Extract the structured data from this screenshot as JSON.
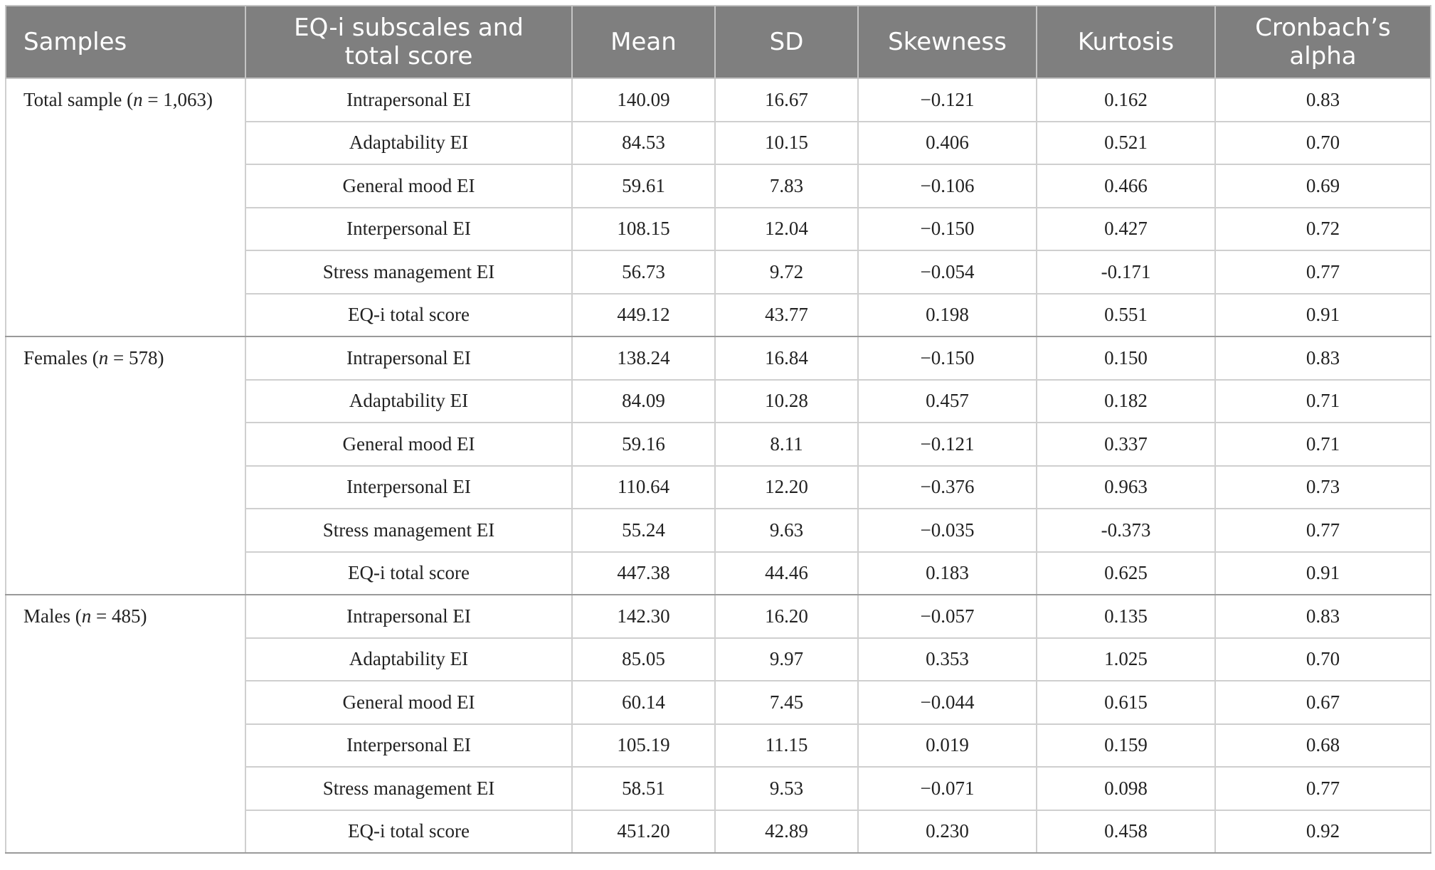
{
  "header": {
    "samples": "Samples",
    "subscales_line1": "EQ-i subscales and",
    "subscales_line2": "total score",
    "mean": "Mean",
    "sd": "SD",
    "skewness": "Skewness",
    "kurtosis": "Kurtosis",
    "alpha_line1": "Cronbach’s",
    "alpha_line2": "alpha"
  },
  "groups": [
    {
      "label": "Total sample",
      "n_symbol": "n",
      "n_text": " = 1,063)",
      "rows": [
        {
          "subscale": "Intrapersonal EI",
          "mean": "140.09",
          "sd": "16.67",
          "skewness": "−0.121",
          "kurtosis": "0.162",
          "alpha": "0.83"
        },
        {
          "subscale": "Adaptability EI",
          "mean": "84.53",
          "sd": "10.15",
          "skewness": "0.406",
          "kurtosis": "0.521",
          "alpha": "0.70"
        },
        {
          "subscale": "General mood EI",
          "mean": "59.61",
          "sd": "7.83",
          "skewness": "−0.106",
          "kurtosis": "0.466",
          "alpha": "0.69"
        },
        {
          "subscale": "Interpersonal EI",
          "mean": "108.15",
          "sd": "12.04",
          "skewness": "−0.150",
          "kurtosis": "0.427",
          "alpha": "0.72"
        },
        {
          "subscale": "Stress management EI",
          "mean": "56.73",
          "sd": "9.72",
          "skewness": "−0.054",
          "kurtosis": "-0.171",
          "alpha": "0.77"
        },
        {
          "subscale": "EQ-i total score",
          "mean": "449.12",
          "sd": "43.77",
          "skewness": "0.198",
          "kurtosis": "0.551",
          "alpha": "0.91"
        }
      ]
    },
    {
      "label": "Females",
      "n_symbol": "n",
      "n_text": " = 578)",
      "rows": [
        {
          "subscale": "Intrapersonal EI",
          "mean": "138.24",
          "sd": "16.84",
          "skewness": "−0.150",
          "kurtosis": "0.150",
          "alpha": "0.83"
        },
        {
          "subscale": "Adaptability EI",
          "mean": "84.09",
          "sd": "10.28",
          "skewness": "0.457",
          "kurtosis": "0.182",
          "alpha": "0.71"
        },
        {
          "subscale": "General mood EI",
          "mean": "59.16",
          "sd": "8.11",
          "skewness": "−0.121",
          "kurtosis": "0.337",
          "alpha": "0.71"
        },
        {
          "subscale": "Interpersonal EI",
          "mean": "110.64",
          "sd": "12.20",
          "skewness": "−0.376",
          "kurtosis": "0.963",
          "alpha": "0.73"
        },
        {
          "subscale": "Stress management EI",
          "mean": "55.24",
          "sd": "9.63",
          "skewness": "−0.035",
          "kurtosis": "-0.373",
          "alpha": "0.77"
        },
        {
          "subscale": "EQ-i total score",
          "mean": "447.38",
          "sd": "44.46",
          "skewness": "0.183",
          "kurtosis": "0.625",
          "alpha": "0.91"
        }
      ]
    },
    {
      "label": "Males",
      "n_symbol": "n",
      "n_text": " = 485)",
      "rows": [
        {
          "subscale": "Intrapersonal EI",
          "mean": "142.30",
          "sd": "16.20",
          "skewness": "−0.057",
          "kurtosis": "0.135",
          "alpha": "0.83"
        },
        {
          "subscale": "Adaptability EI",
          "mean": "85.05",
          "sd": "9.97",
          "skewness": "0.353",
          "kurtosis": "1.025",
          "alpha": "0.70"
        },
        {
          "subscale": "General mood EI",
          "mean": "60.14",
          "sd": "7.45",
          "skewness": "−0.044",
          "kurtosis": "0.615",
          "alpha": "0.67"
        },
        {
          "subscale": "Interpersonal EI",
          "mean": "105.19",
          "sd": "11.15",
          "skewness": "0.019",
          "kurtosis": "0.159",
          "alpha": "0.68"
        },
        {
          "subscale": "Stress management EI",
          "mean": "58.51",
          "sd": "9.53",
          "skewness": "−0.071",
          "kurtosis": "0.098",
          "alpha": "0.77"
        },
        {
          "subscale": "EQ-i total score",
          "mean": "451.20",
          "sd": "42.89",
          "skewness": "0.230",
          "kurtosis": "0.458",
          "alpha": "0.92"
        }
      ]
    }
  ]
}
